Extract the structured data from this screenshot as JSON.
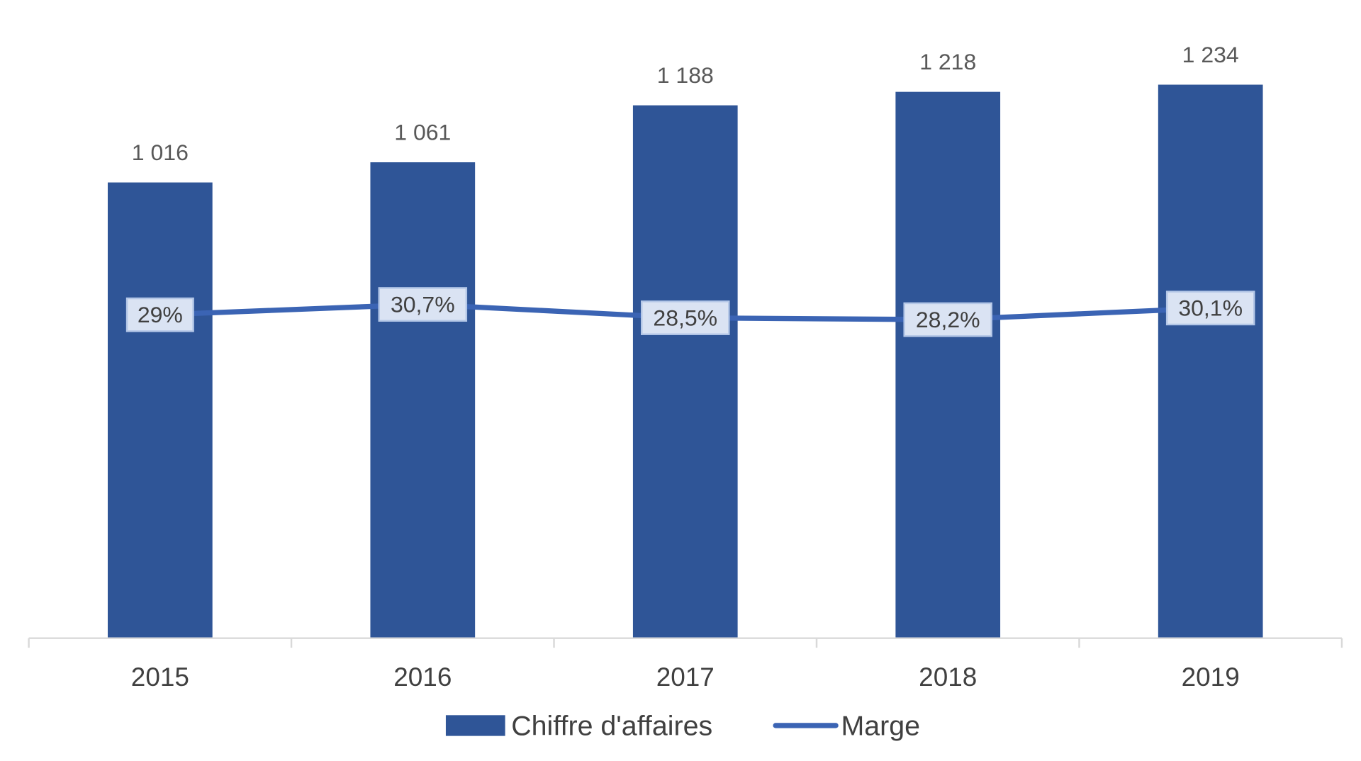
{
  "chart_data": {
    "type": "bar+line",
    "categories": [
      "2015",
      "2016",
      "2017",
      "2018",
      "2019"
    ],
    "series": [
      {
        "name": "Chiffre d'affaires",
        "type": "bar",
        "values": [
          1016,
          1061,
          1188,
          1218,
          1234
        ],
        "labels": [
          "1 016",
          "1 061",
          "1 188",
          "1 218",
          "1 234"
        ],
        "color": "#2F5597"
      },
      {
        "name": "Marge",
        "type": "line",
        "values": [
          29.0,
          30.7,
          28.5,
          28.2,
          30.1
        ],
        "labels": [
          "29%",
          "30,7%",
          "28,5%",
          "28,2%",
          "30,1%"
        ],
        "color": "#3B64B4"
      }
    ],
    "title": "",
    "xlabel": "",
    "ylabel": "",
    "ylim": [
      0,
      1300
    ],
    "grid": false,
    "legend": "bottom",
    "label_box_fill": "#DAE3F3",
    "label_box_border": "#B4C7E7"
  }
}
